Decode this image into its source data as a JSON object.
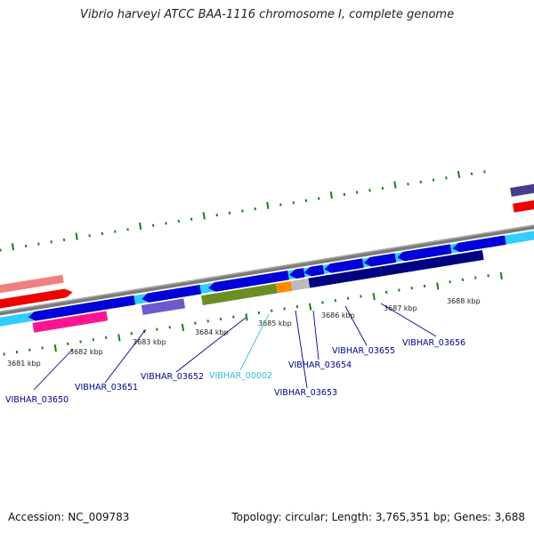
{
  "title": "Vibrio harveyi ATCC BAA-1116 chromosome I, complete genome",
  "footer": {
    "accession": "Accession: NC_009783",
    "summary": "Topology: circular; Length: 3,765,351 bp; Genes: 3,688"
  },
  "scale_labels": [
    "3681 kbp",
    "3682 kbp",
    "3683 kbp",
    "3684 kbp",
    "3685 kbp",
    "3686 kbp",
    "3687 kbp",
    "3688 kbp"
  ],
  "gene_labels": [
    {
      "id": "VIBHAR_03650",
      "color": "#00008b"
    },
    {
      "id": "VIBHAR_03651",
      "color": "#00008b"
    },
    {
      "id": "VIBHAR_03652",
      "color": "#00008b"
    },
    {
      "id": "VIBHAR_00002",
      "color": "#33bbdd"
    },
    {
      "id": "VIBHAR_03654",
      "color": "#00008b"
    },
    {
      "id": "VIBHAR_03653",
      "color": "#00008b"
    },
    {
      "id": "VIBHAR_03655",
      "color": "#00008b"
    },
    {
      "id": "VIBHAR_03656",
      "color": "#00008b"
    }
  ],
  "colors": {
    "backbone": "#7a7a7a",
    "forward_cds": "#0000dd",
    "forward_rna": "#33ccff",
    "reverse_dark": "#000080",
    "reverse_pink": "#ff1493",
    "reverse_purple": "#6a5acd",
    "reverse_olive": "#6b8e23",
    "reverse_orange": "#ff8c00",
    "reverse_grey": "#bbbbbb",
    "tick_green": "#1f7a1f",
    "red": "#ff0000"
  }
}
